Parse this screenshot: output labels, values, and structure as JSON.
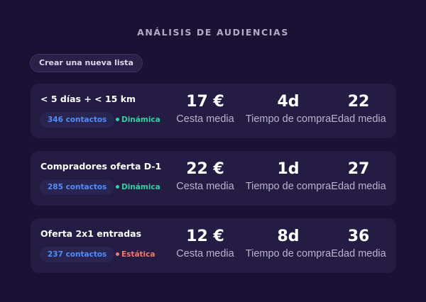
{
  "header": {
    "title": "ANÁLISIS DE AUDIENCIAS",
    "new_list_label": "Crear una nueva lista"
  },
  "colors": {
    "background": "#1a1135",
    "card": "#251c44",
    "contacts_accent": "#4f8dff",
    "dynamic": "#2fd3a6",
    "static": "#f07a6c"
  },
  "audiences": [
    {
      "name": "< 5 días + < 15 km",
      "contacts": "346 contactos",
      "status": "Dinámica",
      "status_type": "dynamic",
      "metrics": [
        {
          "value": "17 €",
          "label": "Cesta media"
        },
        {
          "value": "4d",
          "label": "Tiempo de compra"
        },
        {
          "value": "22",
          "label": "Edad media"
        }
      ]
    },
    {
      "name": "Compradores oferta D-1",
      "contacts": "285 contactos",
      "status": "Dinámica",
      "status_type": "dynamic",
      "metrics": [
        {
          "value": "22 €",
          "label": "Cesta media"
        },
        {
          "value": "1d",
          "label": "Tiempo de compra"
        },
        {
          "value": "27",
          "label": "Edad media"
        }
      ]
    },
    {
      "name": "Oferta 2x1 entradas",
      "contacts": "237 contactos",
      "status": "Estática",
      "status_type": "static",
      "metrics": [
        {
          "value": "12 €",
          "label": "Cesta media"
        },
        {
          "value": "8d",
          "label": "Tiempo de compra"
        },
        {
          "value": "36",
          "label": "Edad media"
        }
      ]
    }
  ]
}
